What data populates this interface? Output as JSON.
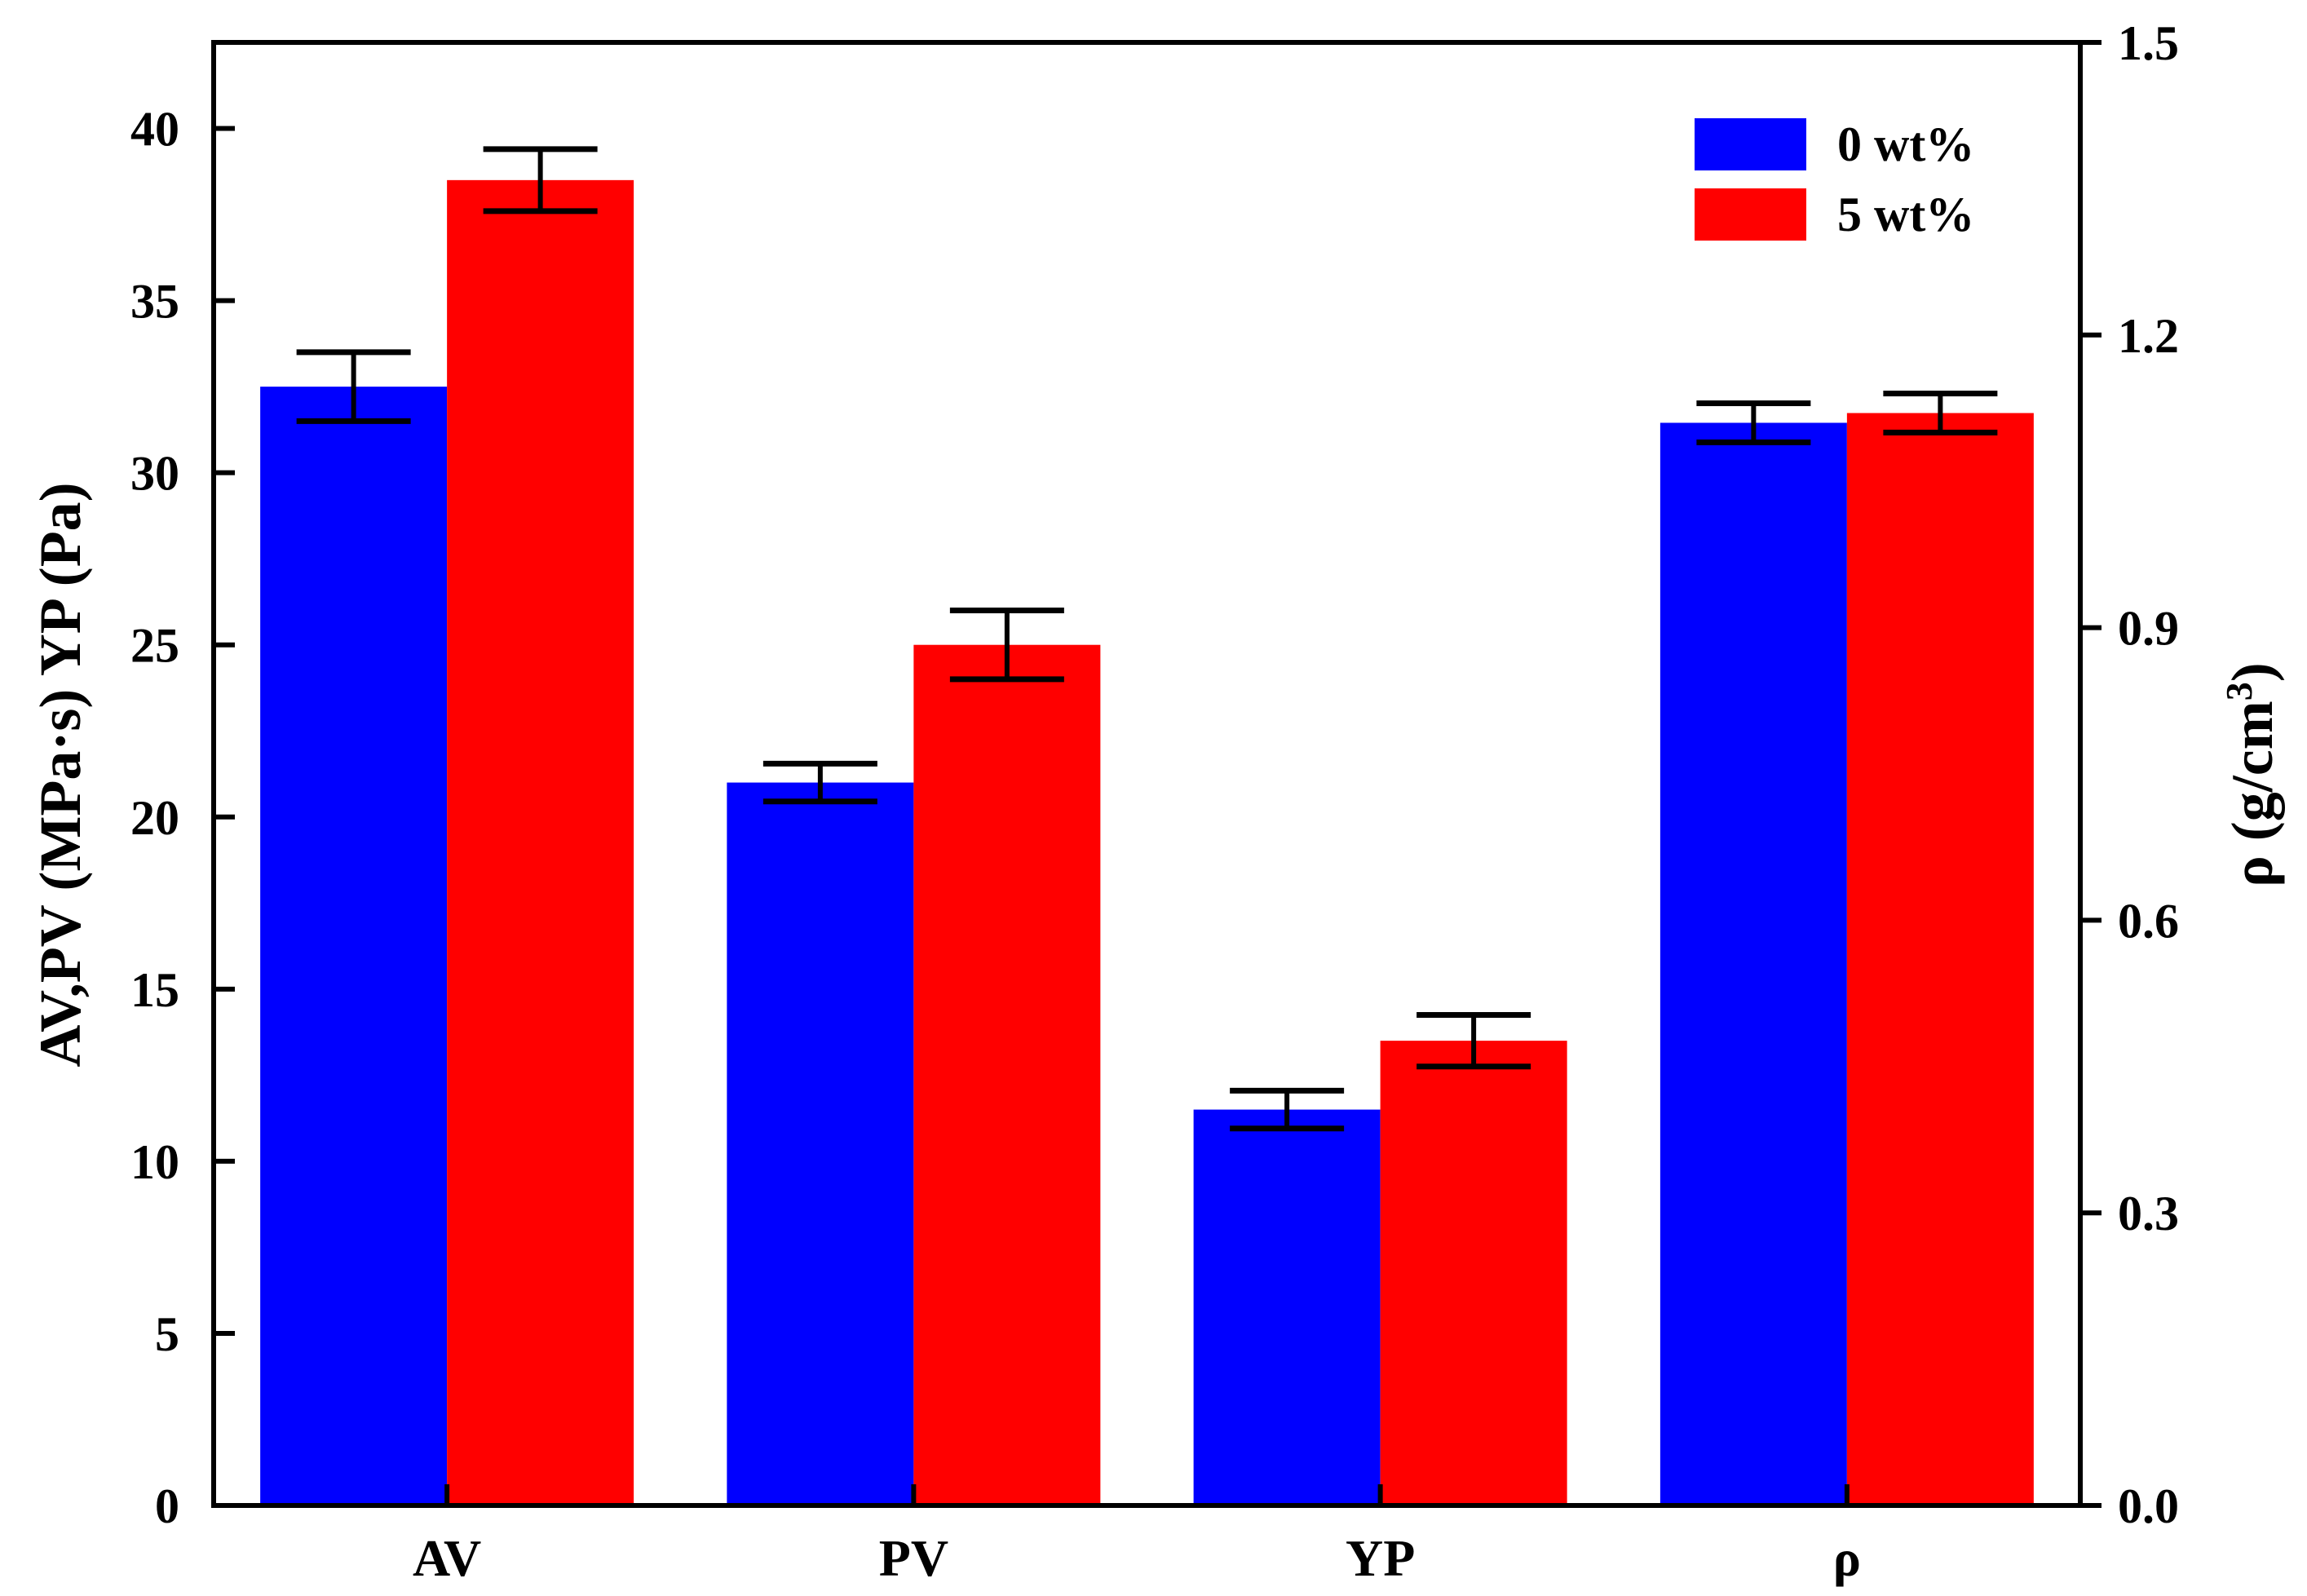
{
  "chart_data": {
    "type": "bar",
    "categories": [
      "AV",
      "PV",
      "YP",
      "ρ"
    ],
    "series": [
      {
        "name": "0 wt%",
        "color": "#0000ff",
        "values": [
          32.5,
          21.0,
          11.5,
          1.11
        ],
        "errors": [
          1.0,
          0.55,
          0.55,
          0.02
        ],
        "axis": [
          "left",
          "left",
          "left",
          "right"
        ]
      },
      {
        "name": "5 wt%",
        "color": "#ff0000",
        "values": [
          38.5,
          25.0,
          13.5,
          1.12
        ],
        "errors": [
          0.9,
          1.0,
          0.75,
          0.02
        ],
        "axis": [
          "left",
          "left",
          "left",
          "right"
        ]
      }
    ],
    "left_axis": {
      "title": "AV,PV (MPa·s) YP (Pa)",
      "ylim": [
        0,
        42.5
      ],
      "ticks": [
        "0",
        "5",
        "10",
        "15",
        "20",
        "25",
        "30",
        "35",
        "40"
      ],
      "tick_values": [
        0,
        5,
        10,
        15,
        20,
        25,
        30,
        35,
        40
      ]
    },
    "right_axis": {
      "title_main": "ρ (g/cm",
      "title_sup": "3",
      "title_end": ")",
      "ylim": [
        0,
        1.5
      ],
      "ticks": [
        "0.0",
        "0.3",
        "0.6",
        "0.9",
        "1.2",
        "1.5"
      ],
      "tick_values": [
        0,
        0.3,
        0.6,
        0.9,
        1.2,
        1.5
      ]
    },
    "legend_position": "top-right",
    "grid": false
  }
}
